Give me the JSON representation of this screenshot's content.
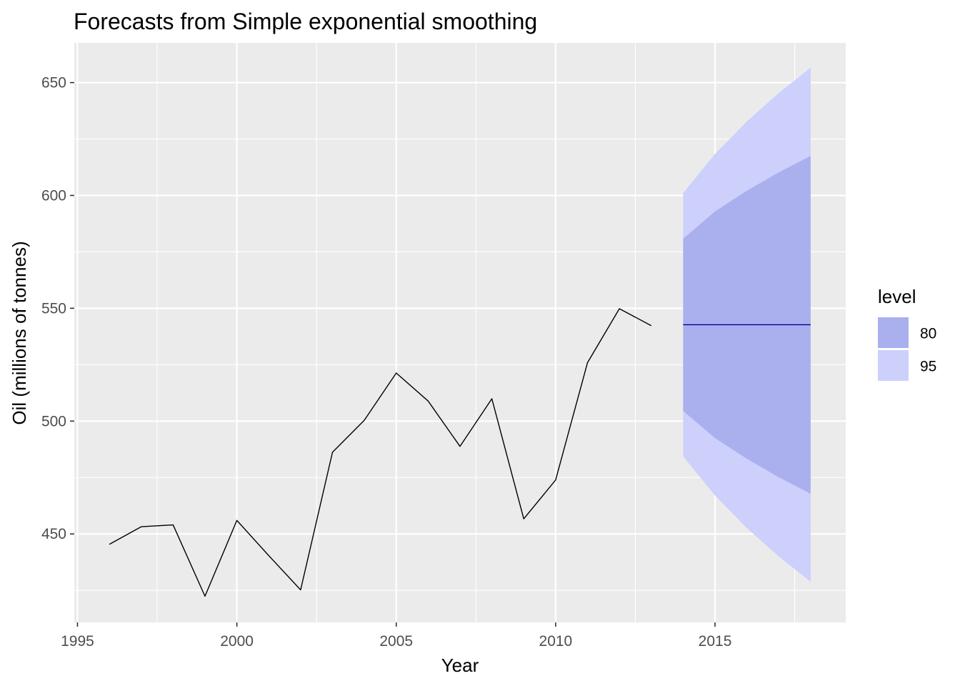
{
  "chart_data": {
    "type": "line",
    "title": "Forecasts from Simple exponential smoothing",
    "xlabel": "Year",
    "ylabel": "Oil (millions of tonnes)",
    "xlim": [
      1994.9,
      2019.1
    ],
    "ylim": [
      410.8,
      667.6
    ],
    "x_ticks": [
      1995,
      2000,
      2005,
      2010,
      2015
    ],
    "x_tick_labels": [
      "1995",
      "2000",
      "2005",
      "2010",
      "2015"
    ],
    "y_ticks": [
      450,
      500,
      550,
      600,
      650
    ],
    "y_tick_labels": [
      "450",
      "500",
      "550",
      "600",
      "650"
    ],
    "grid": true,
    "background": "#ebebeb",
    "series": [
      {
        "kind": "observed",
        "color": "#000000",
        "x": [
          1996,
          1997,
          1998,
          1999,
          2000,
          2001,
          2002,
          2003,
          2004,
          2005,
          2006,
          2007,
          2008,
          2009,
          2010,
          2011,
          2012,
          2013
        ],
        "y": [
          445.4,
          453.2,
          454.0,
          422.4,
          456.0,
          440.4,
          425.2,
          486.2,
          500.4,
          521.3,
          508.9,
          488.8,
          509.9,
          456.7,
          473.9,
          525.9,
          549.8,
          542.3
        ]
      },
      {
        "kind": "forecast",
        "color": "#00008b",
        "x": [
          2014,
          2015,
          2016,
          2017,
          2018
        ],
        "y": [
          542.7,
          542.7,
          542.7,
          542.7,
          542.7
        ]
      }
    ],
    "intervals": [
      {
        "level": "95",
        "color": "#ccd0fb",
        "x": [
          2014,
          2015,
          2016,
          2017,
          2018
        ],
        "lower": [
          484.4,
          467.0,
          452.6,
          440.0,
          428.8
        ],
        "upper": [
          601.0,
          618.4,
          632.8,
          645.4,
          656.6
        ]
      },
      {
        "level": "80",
        "color": "#aab0ee",
        "x": [
          2014,
          2015,
          2016,
          2017,
          2018
        ],
        "lower": [
          504.5,
          492.5,
          483.3,
          475.1,
          467.8
        ],
        "upper": [
          580.8,
          592.9,
          602.1,
          610.2,
          617.5
        ]
      }
    ],
    "legend": {
      "title": "level",
      "placement": "right",
      "entries": [
        {
          "label": "80",
          "color": "#aab0ee"
        },
        {
          "label": "95",
          "color": "#ccd0fb"
        }
      ]
    }
  }
}
